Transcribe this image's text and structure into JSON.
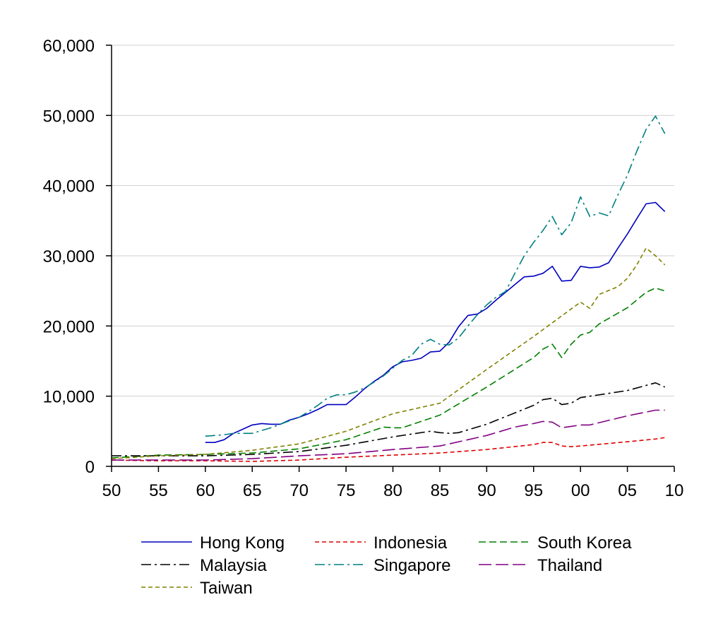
{
  "chart_data": {
    "type": "line",
    "title": "",
    "xlabel": "",
    "ylabel": "",
    "xlim": [
      1950,
      2010
    ],
    "ylim": [
      0,
      60000
    ],
    "xticks": [
      1950,
      1955,
      1960,
      1965,
      1970,
      1975,
      1980,
      1985,
      1990,
      1995,
      2000,
      2005,
      2010
    ],
    "xtick_labels": [
      "50",
      "55",
      "60",
      "65",
      "70",
      "75",
      "80",
      "85",
      "90",
      "95",
      "00",
      "05",
      "10"
    ],
    "yticks": [
      0,
      10000,
      20000,
      30000,
      40000,
      50000,
      60000
    ],
    "ytick_labels": [
      "0",
      "10,000",
      "20,000",
      "30,000",
      "40,000",
      "50,000",
      "60,000"
    ],
    "grid": "horizontal",
    "legend_position": "bottom",
    "series": [
      {
        "name": "Hong Kong",
        "color": "#0000c0",
        "dash": "solid",
        "x": [
          1960,
          1961,
          1962,
          1963,
          1964,
          1965,
          1966,
          1967,
          1968,
          1969,
          1970,
          1971,
          1972,
          1973,
          1974,
          1975,
          1976,
          1977,
          1978,
          1979,
          1980,
          1981,
          1982,
          1983,
          1984,
          1985,
          1986,
          1987,
          1988,
          1989,
          1990,
          1991,
          1992,
          1993,
          1994,
          1995,
          1996,
          1997,
          1998,
          1999,
          2000,
          2001,
          2002,
          2003,
          2004,
          2005,
          2006,
          2007,
          2008,
          2009
        ],
        "y": [
          3400,
          3400,
          3800,
          4700,
          5300,
          5900,
          6100,
          6000,
          6000,
          6600,
          7000,
          7500,
          8100,
          8800,
          8800,
          8800,
          9900,
          11100,
          12100,
          13000,
          14200,
          14900,
          15100,
          15400,
          16300,
          16400,
          17700,
          19900,
          21500,
          21700,
          22500,
          23700,
          24800,
          25900,
          27000,
          27100,
          27500,
          28500,
          26400,
          26500,
          28500,
          28300,
          28400,
          29000,
          31100,
          33100,
          35300,
          37400,
          37600,
          36300
        ]
      },
      {
        "name": "Indonesia",
        "color": "#e00000",
        "dash": "short",
        "x": [
          1950,
          1955,
          1960,
          1965,
          1970,
          1975,
          1980,
          1985,
          1990,
          1995,
          1996,
          1997,
          1998,
          1999,
          2000,
          2005,
          2008,
          2009
        ],
        "y": [
          900,
          800,
          800,
          700,
          900,
          1300,
          1600,
          1900,
          2400,
          3100,
          3400,
          3400,
          2900,
          2800,
          2900,
          3500,
          3900,
          4100
        ]
      },
      {
        "name": "South Korea",
        "color": "#008000",
        "dash": "medium",
        "x": [
          1950,
          1955,
          1960,
          1965,
          1970,
          1975,
          1979,
          1980,
          1981,
          1985,
          1990,
          1995,
          1996,
          1997,
          1998,
          1999,
          2000,
          2001,
          2002,
          2005,
          2007,
          2008,
          2009
        ],
        "y": [
          1200,
          1600,
          1700,
          1900,
          2500,
          3800,
          5600,
          5500,
          5500,
          7300,
          11300,
          15500,
          16700,
          17400,
          15500,
          17400,
          18700,
          19100,
          20300,
          22600,
          24800,
          25400,
          25000
        ]
      },
      {
        "name": "Malaysia",
        "color": "#000000",
        "dash": "dashdot",
        "x": [
          1950,
          1955,
          1960,
          1965,
          1970,
          1975,
          1980,
          1984,
          1985,
          1986,
          1987,
          1990,
          1995,
          1996,
          1997,
          1998,
          1999,
          2000,
          2005,
          2008,
          2009
        ],
        "y": [
          1500,
          1500,
          1500,
          1700,
          2100,
          3000,
          4200,
          5000,
          4800,
          4700,
          4800,
          6000,
          8700,
          9500,
          9700,
          8800,
          9000,
          9800,
          10800,
          11900,
          11300
        ]
      },
      {
        "name": "Singapore",
        "color": "#008080",
        "dash": "dashdot",
        "x": [
          1960,
          1961,
          1962,
          1963,
          1964,
          1965,
          1966,
          1967,
          1968,
          1969,
          1970,
          1971,
          1972,
          1973,
          1974,
          1975,
          1976,
          1977,
          1978,
          1979,
          1980,
          1981,
          1982,
          1983,
          1984,
          1985,
          1986,
          1987,
          1988,
          1989,
          1990,
          1991,
          1992,
          1993,
          1994,
          1995,
          1996,
          1997,
          1998,
          1999,
          2000,
          2001,
          2002,
          2003,
          2004,
          2005,
          2006,
          2007,
          2008,
          2009
        ],
        "y": [
          4300,
          4400,
          4500,
          4700,
          4700,
          4700,
          5100,
          5500,
          6000,
          6500,
          7000,
          7800,
          8700,
          9700,
          10200,
          10200,
          10600,
          11200,
          12000,
          12900,
          14000,
          15100,
          15800,
          17400,
          18100,
          17400,
          17300,
          18300,
          20000,
          21600,
          23000,
          24100,
          24900,
          27500,
          30000,
          31900,
          33600,
          35600,
          33000,
          34700,
          38400,
          35600,
          36100,
          35700,
          38700,
          41500,
          44900,
          48000,
          49900,
          47400
        ]
      },
      {
        "name": "Thailand",
        "color": "#800080",
        "dash": "long",
        "x": [
          1950,
          1955,
          1960,
          1965,
          1970,
          1975,
          1980,
          1985,
          1990,
          1993,
          1995,
          1996,
          1997,
          1998,
          1999,
          2000,
          2001,
          2005,
          2008,
          2009
        ],
        "y": [
          900,
          900,
          900,
          1100,
          1500,
          1800,
          2400,
          2900,
          4400,
          5600,
          6100,
          6400,
          6300,
          5500,
          5700,
          5900,
          5900,
          7200,
          8000,
          8000
        ]
      },
      {
        "name": "Taiwan",
        "color": "#808000",
        "dash": "short",
        "x": [
          1950,
          1955,
          1960,
          1965,
          1970,
          1975,
          1980,
          1985,
          1990,
          1995,
          2000,
          2001,
          2002,
          2004,
          2005,
          2006,
          2007,
          2008,
          2009
        ],
        "y": [
          1100,
          1500,
          1700,
          2300,
          3200,
          5000,
          7500,
          9000,
          13800,
          18500,
          23400,
          22500,
          24500,
          25600,
          26800,
          28700,
          31100,
          30000,
          28700
        ]
      }
    ]
  }
}
